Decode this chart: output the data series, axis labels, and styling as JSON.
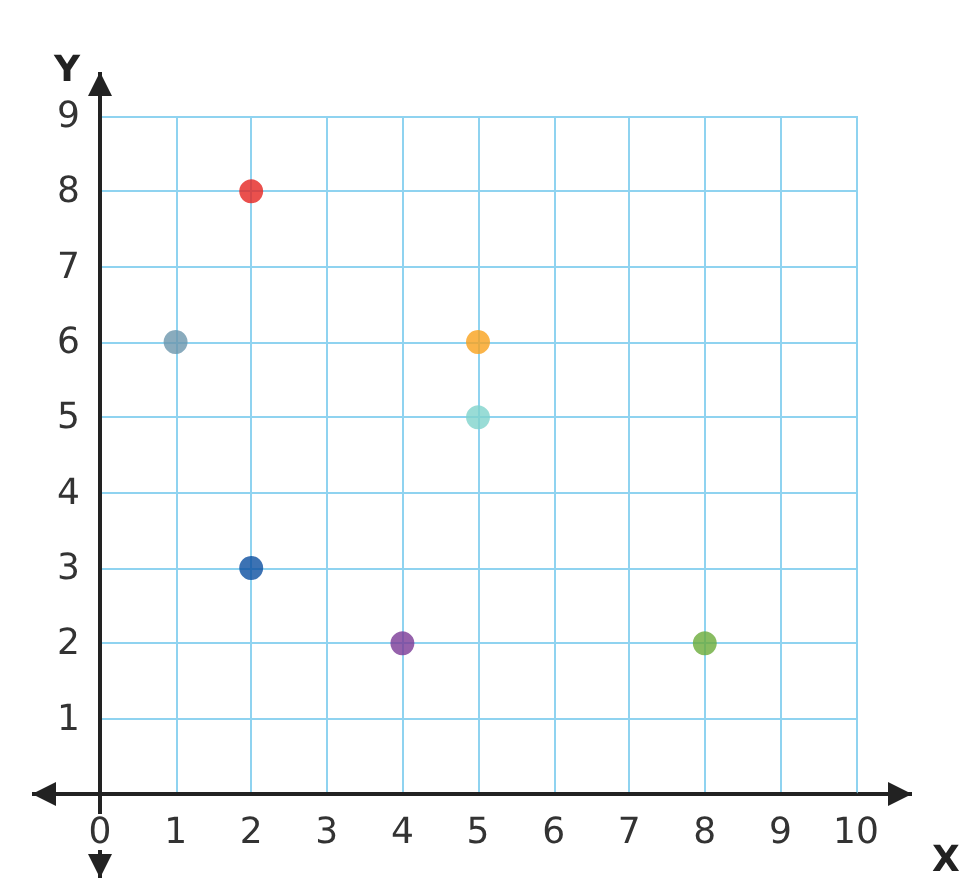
{
  "chart_data": {
    "type": "scatter",
    "xlabel": "X",
    "ylabel": "Y",
    "x": [
      1,
      2,
      2,
      4,
      5,
      5,
      8
    ],
    "values": [
      6,
      8,
      3,
      2,
      6,
      5,
      2
    ],
    "colors": [
      "#6b96ad",
      "#e52421",
      "#0b4fa0",
      "#7b3a96",
      "#f9a11b",
      "#7fd3cc",
      "#6aab3a"
    ],
    "xlim": [
      0,
      10
    ],
    "ylim": [
      0,
      9
    ],
    "xticks": [
      {
        "value": 0,
        "label": "0"
      },
      1,
      2,
      3,
      4,
      5,
      6,
      7,
      8,
      9,
      10
    ],
    "yticks": [
      {
        "value": 0,
        "label": null
      },
      1,
      2,
      3,
      4,
      5,
      6,
      7,
      8,
      9
    ],
    "grid": true,
    "marker": "circle"
  }
}
